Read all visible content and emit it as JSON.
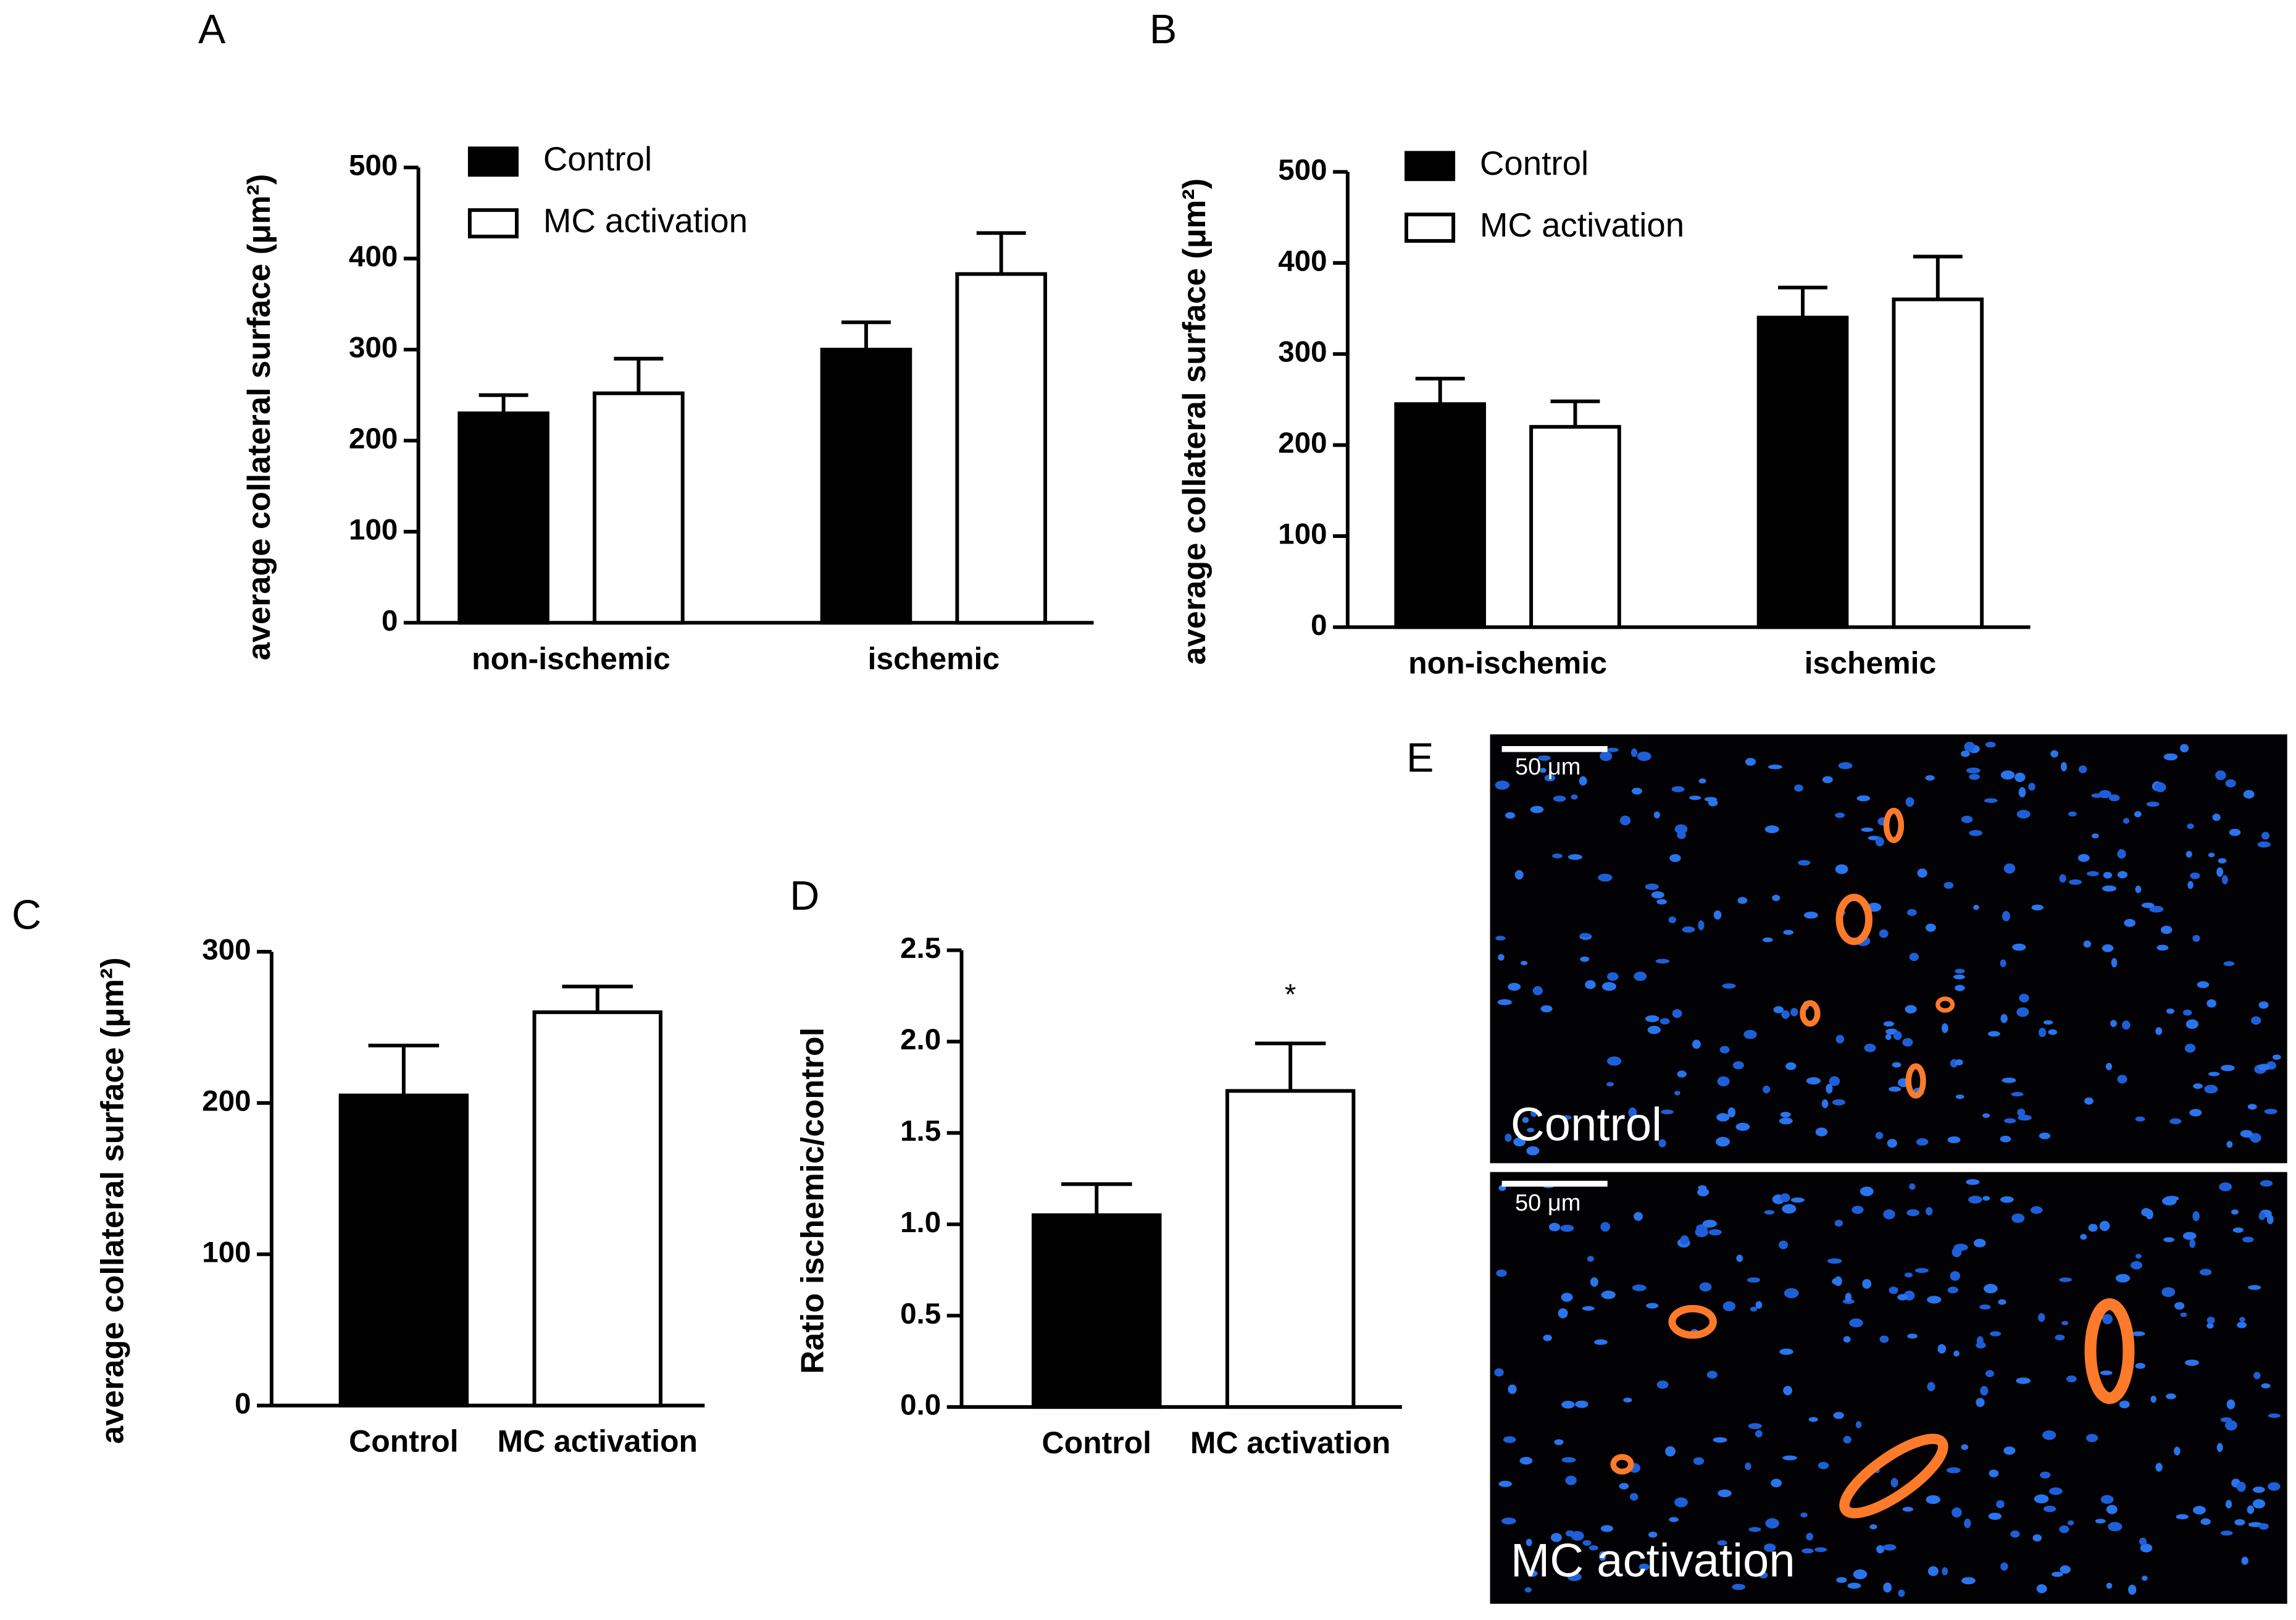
{
  "chart_data": [
    {
      "type": "grouped-bar",
      "panel": "A",
      "y_label": "average collateral surface (μm²)",
      "categories": [
        "non-ischemic",
        "ischemic"
      ],
      "series": [
        {
          "name": "Control",
          "color": "#000000",
          "values": [
            230,
            300
          ],
          "errors": [
            20,
            30
          ]
        },
        {
          "name": "MC activation",
          "color": "#ffffff",
          "values": [
            252,
            383
          ],
          "errors": [
            38,
            45
          ]
        }
      ],
      "ylim": [
        0,
        500
      ],
      "yticks": [
        0,
        100,
        200,
        300,
        400,
        500
      ]
    },
    {
      "type": "grouped-bar",
      "panel": "B",
      "y_label": "average collateral surface (μm²)",
      "categories": [
        "non-ischemic",
        "ischemic"
      ],
      "series": [
        {
          "name": "Control",
          "color": "#000000",
          "values": [
            245,
            340
          ],
          "errors": [
            28,
            33
          ]
        },
        {
          "name": "MC activation",
          "color": "#ffffff",
          "values": [
            220,
            360
          ],
          "errors": [
            28,
            47
          ]
        }
      ],
      "ylim": [
        0,
        500
      ],
      "yticks": [
        0,
        100,
        200,
        300,
        400,
        500
      ]
    },
    {
      "type": "bar",
      "panel": "C",
      "y_label": "average collateral surface (μm²)",
      "categories": [
        "Control",
        "MC activation"
      ],
      "values": [
        205,
        260
      ],
      "errors": [
        33,
        17
      ],
      "colors": [
        "#000000",
        "#ffffff"
      ],
      "ylim": [
        0,
        300
      ],
      "yticks": [
        0,
        100,
        200,
        300
      ]
    },
    {
      "type": "bar",
      "panel": "D",
      "y_label": "Ratio ischemic/control",
      "categories": [
        "Control",
        "MC activation"
      ],
      "values": [
        1.05,
        1.73
      ],
      "errors": [
        0.17,
        0.26
      ],
      "colors": [
        "#000000",
        "#ffffff"
      ],
      "annotations": [
        null,
        "*"
      ],
      "ylim": [
        0,
        2.5
      ],
      "yticks": [
        {
          "value": 0,
          "label": "0.0"
        },
        0.5,
        {
          "value": 1,
          "label": "1.0"
        },
        1.5,
        {
          "value": 2,
          "label": "2.0"
        },
        2.5
      ]
    }
  ],
  "panel_e": {
    "panel": "E",
    "images": [
      {
        "label": "Control",
        "scale_bar": "50 μm"
      },
      {
        "label": "MC activation",
        "scale_bar": "50 μm"
      }
    ]
  }
}
